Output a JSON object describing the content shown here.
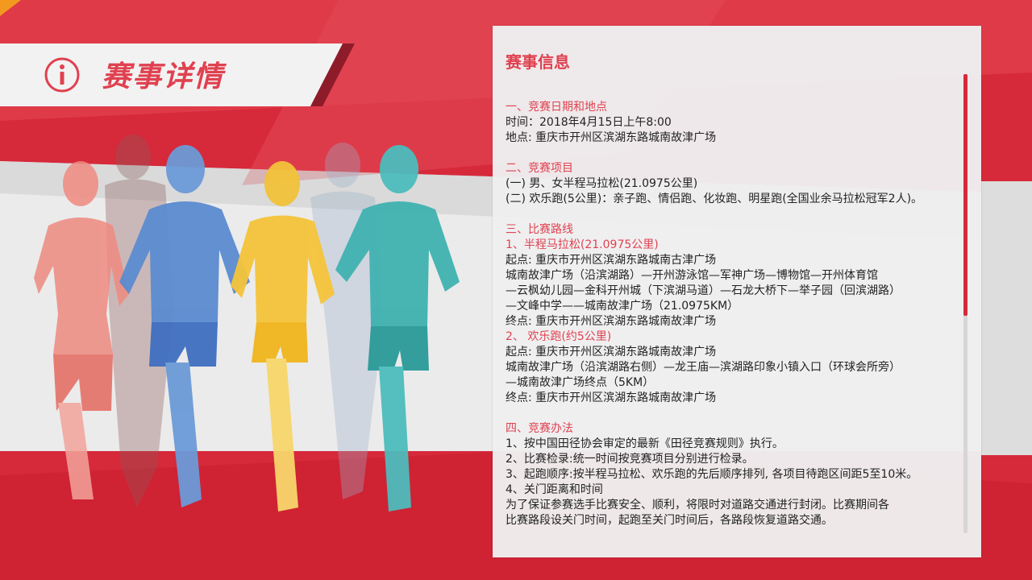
{
  "header": {
    "title": "赛事详情",
    "icon": "info-icon"
  },
  "colors": {
    "accent": "#e04150",
    "red_bg": "#d6293a"
  },
  "panel": {
    "heading": "赛事信息",
    "sections": [
      {
        "title": "一、竞赛日期和地点",
        "lines": [
          "时间：2018年4月15日上午8:00",
          "地点: 重庆市开州区滨湖东路城南故津广场"
        ]
      },
      {
        "title": "二、竞赛项目",
        "lines": [
          "(一) 男、女半程马拉松(21.0975公里)",
          "(二) 欢乐跑(5公里)：亲子跑、情侣跑、化妆跑、明星跑(全国业余马拉松冠军2人)。"
        ]
      },
      {
        "title": "三、比赛路线",
        "lines": []
      },
      {
        "title": "1、半程马拉松(21.0975公里)",
        "lines": [
          "起点: 重庆市开州区滨湖东路城南古津广场",
          "城南故津广场（沿滨湖路）—开州游泳馆—军神广场—博物馆—开州体育馆",
          "—云枫幼儿园—金科开州城（下滨湖马道）—石龙大桥下—举子园（回滨湖路）",
          "—文峰中学——城南故津广场（21.0975KM）",
          "终点: 重庆市开州区滨湖东路城南故津广场"
        ]
      },
      {
        "title": "2、 欢乐跑(约5公里)",
        "lines": [
          "起点: 重庆市开州区滨湖东路城南故津广场",
          "城南故津广场（沿滨湖路右侧）—龙王庙—滨湖路印象小镇入口（环球会所旁）",
          "—城南故津广场终点（5KM）",
          "终点: 重庆市开州区滨湖东路城南故津广场"
        ]
      },
      {
        "title": "四、竞赛办法",
        "lines": [
          "1、按中国田径协会审定的最新《田径竞赛规则》执行。",
          "2、比赛检录:统一时间按竞赛项目分别进行检录。",
          "3、起跑顺序:按半程马拉松、欢乐跑的先后顺序排列, 各项目待跑区间距5至10米。",
          "4、关门距离和时间",
          "为了保证参赛选手比赛安全、顺利，将限时对道路交通进行封闭。比赛期间各",
          "比赛路段设关门时间，起跑至关门时间后，各路段恢复道路交通。"
        ]
      }
    ]
  }
}
